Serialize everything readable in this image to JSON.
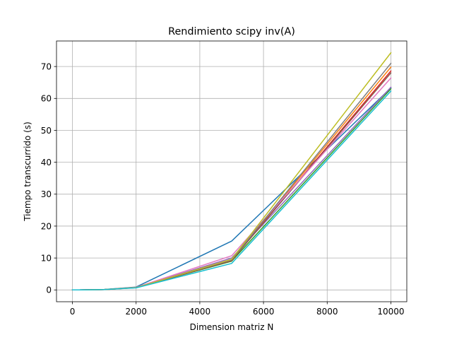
{
  "chart_data": {
    "type": "line",
    "title": "Rendimiento scipy inv(A)",
    "xlabel": "Dimension matriz N",
    "ylabel": "Tiempo transcurrido (s)",
    "xlim": [
      -500,
      10500
    ],
    "ylim": [
      -3.7,
      78.0
    ],
    "xticks": [
      0,
      2000,
      4000,
      6000,
      8000,
      10000
    ],
    "yticks": [
      0,
      10,
      20,
      30,
      40,
      50,
      60,
      70
    ],
    "xtick_labels": [
      "0",
      "2000",
      "4000",
      "6000",
      "8000",
      "10000"
    ],
    "ytick_labels": [
      "0",
      "10",
      "20",
      "30",
      "40",
      "50",
      "60",
      "70"
    ],
    "grid": true,
    "legend": "none",
    "x": [
      1,
      10,
      50,
      100,
      200,
      500,
      1000,
      2000,
      5000,
      10000
    ],
    "series": [
      {
        "color": "#1f77b4",
        "values": [
          0.0,
          0.0,
          0.0,
          0.0,
          0.0,
          0.05,
          0.15,
          0.9,
          15.3,
          63.3
        ]
      },
      {
        "color": "#ff7f0e",
        "values": [
          0.0,
          0.0,
          0.0,
          0.0,
          0.0,
          0.03,
          0.12,
          0.75,
          9.5,
          69.8
        ]
      },
      {
        "color": "#2ca02c",
        "values": [
          0.0,
          0.0,
          0.0,
          0.0,
          0.0,
          0.03,
          0.12,
          0.7,
          9.0,
          63.0
        ]
      },
      {
        "color": "#d62728",
        "values": [
          0.0,
          0.0,
          0.0,
          0.0,
          0.0,
          0.03,
          0.12,
          0.72,
          9.2,
          68.6
        ]
      },
      {
        "color": "#9467bd",
        "values": [
          0.0,
          0.0,
          0.0,
          0.0,
          0.0,
          0.03,
          0.12,
          0.75,
          10.0,
          63.5
        ]
      },
      {
        "color": "#8c564b",
        "values": [
          0.0,
          0.0,
          0.0,
          0.0,
          0.0,
          0.03,
          0.12,
          0.72,
          9.3,
          68.0
        ]
      },
      {
        "color": "#e377c2",
        "values": [
          0.0,
          0.0,
          0.0,
          0.0,
          0.0,
          0.04,
          0.13,
          0.8,
          10.7,
          66.4
        ]
      },
      {
        "color": "#7f7f7f",
        "values": [
          0.0,
          0.0,
          0.0,
          0.0,
          0.0,
          0.03,
          0.12,
          0.72,
          9.4,
          71.0
        ]
      },
      {
        "color": "#bcbd22",
        "values": [
          0.0,
          0.0,
          0.0,
          0.0,
          0.0,
          0.03,
          0.12,
          0.72,
          9.6,
          74.3
        ]
      },
      {
        "color": "#17becf",
        "values": [
          0.0,
          0.0,
          0.0,
          0.0,
          0.0,
          0.03,
          0.11,
          0.65,
          8.3,
          62.3
        ]
      }
    ]
  }
}
